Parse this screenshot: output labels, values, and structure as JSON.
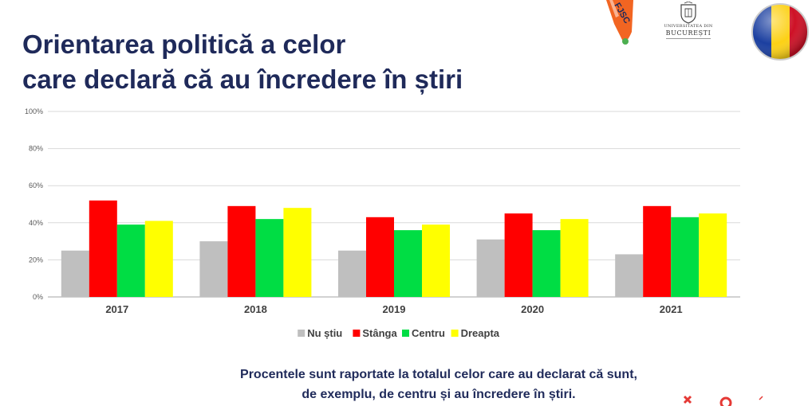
{
  "title": {
    "line1": "Orientarea politică a celor",
    "line2": "care declară că au încredere în știri"
  },
  "logos": {
    "fjsc_text": "FJSC",
    "unibuc_line1": "UNIVERSITATEA DIN",
    "unibuc_line2": "BUCUREȘTI",
    "flag_colors": [
      "#1b3fa0",
      "#fcd116",
      "#ce1126"
    ]
  },
  "chart_data": {
    "type": "bar",
    "categories": [
      "2017",
      "2018",
      "2019",
      "2020",
      "2021"
    ],
    "series": [
      {
        "name": "Nu știu",
        "color": "#bfbfbf",
        "values": [
          25,
          30,
          25,
          31,
          23
        ]
      },
      {
        "name": "Stânga",
        "color": "#ff0000",
        "values": [
          52,
          49,
          43,
          45,
          49
        ]
      },
      {
        "name": "Centru",
        "color": "#00dd44",
        "values": [
          39,
          42,
          36,
          36,
          43
        ]
      },
      {
        "name": "Dreapta",
        "color": "#ffff00",
        "values": [
          41,
          48,
          39,
          42,
          45
        ]
      }
    ],
    "ylim": [
      0,
      100
    ],
    "yticks": [
      "0%",
      "20%",
      "40%",
      "60%",
      "80%",
      "100%"
    ],
    "ytick_values": [
      0,
      20,
      40,
      60,
      80,
      100
    ],
    "grid": true,
    "legend_position": "bottom",
    "title": "",
    "xlabel": "",
    "ylabel": ""
  },
  "caption": {
    "line1": "Procentele sunt raportate la totalul celor care au declarat că sunt,",
    "line2": "de exemplu, de centru și au încredere în știri."
  }
}
